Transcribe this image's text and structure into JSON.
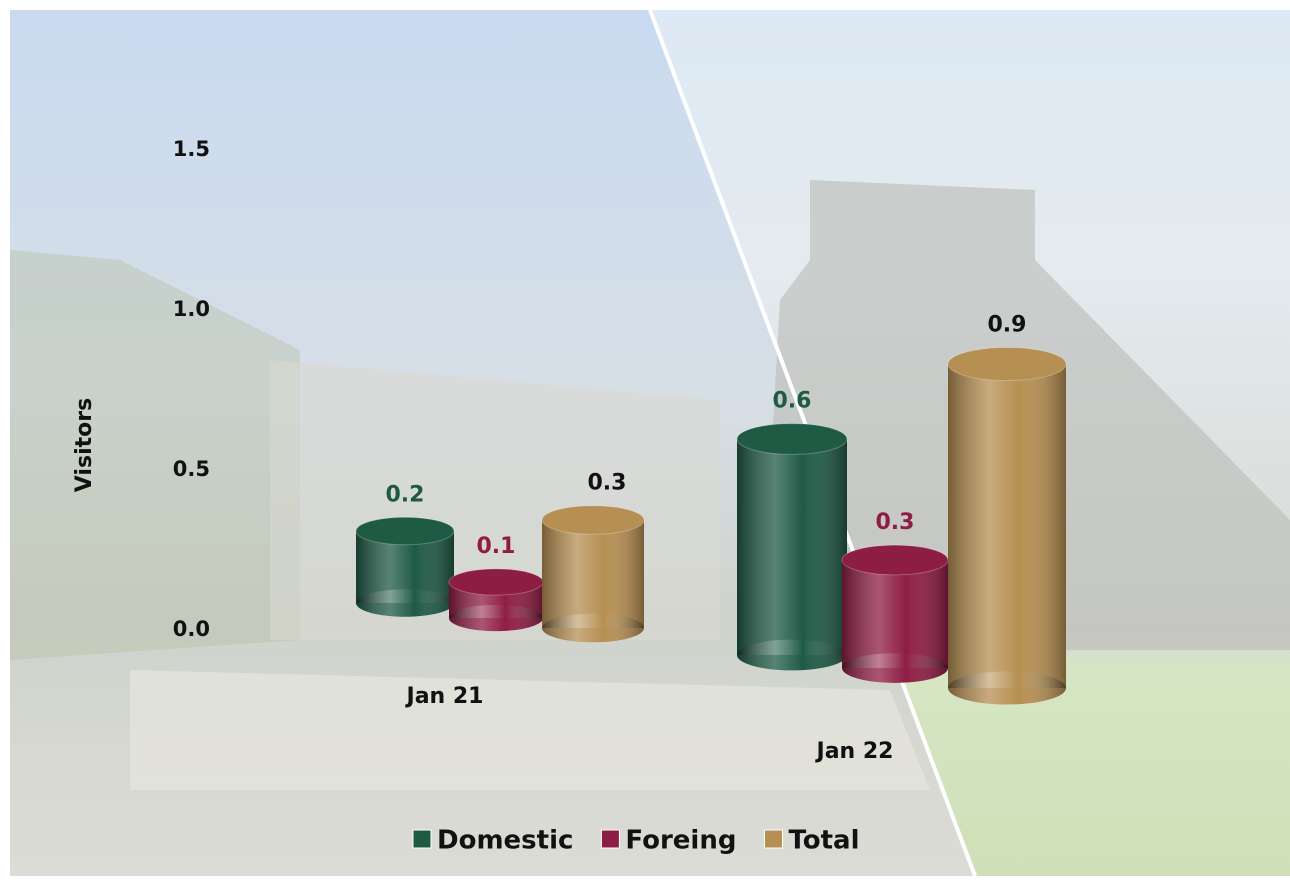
{
  "chart_data": {
    "type": "bar3d",
    "ylabel": "Visitors",
    "categories": [
      "Jan 21",
      "Jan 22"
    ],
    "series": [
      {
        "name": "Domestic",
        "color": "#1f5a45",
        "values": [
          0.2,
          0.6
        ]
      },
      {
        "name": "Foreing",
        "color": "#8e1d44",
        "values": [
          0.1,
          0.3
        ]
      },
      {
        "name": "Total",
        "color": "#b68f52",
        "values": [
          0.3,
          0.9
        ]
      }
    ],
    "ylim": [
      0,
      1.5
    ],
    "yticks": [
      {
        "value": 0,
        "label": "0.0"
      },
      0.5,
      {
        "value": 1,
        "label": "1.0"
      },
      {
        "value": 1.5,
        "label": "1.5"
      }
    ],
    "legend": "bottom"
  }
}
